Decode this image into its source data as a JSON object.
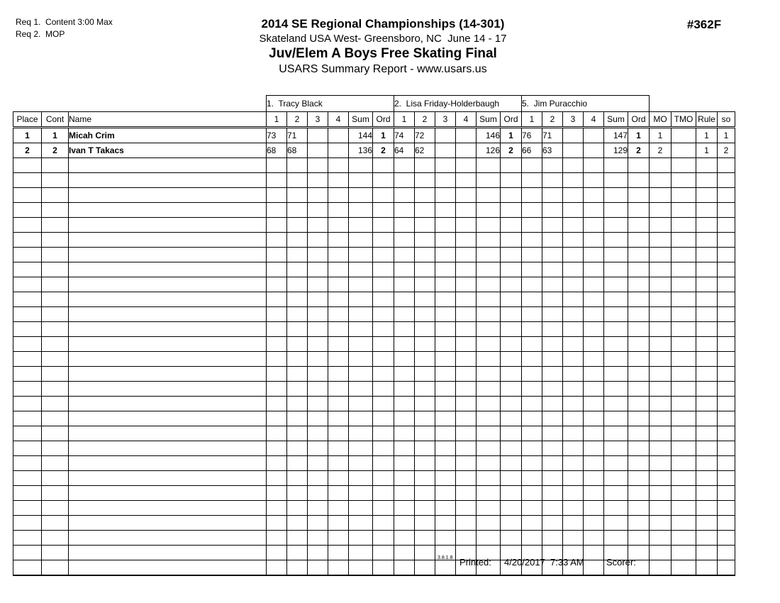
{
  "requirements": {
    "line1": "Req 1.  Content 3:00 Max",
    "line2": "Req 2.  MOP"
  },
  "header": {
    "title": "2014 SE Regional Championships (14-301)",
    "venue_line": "Skateland USA West- Greensboro, NC  June 14 - 17",
    "event_title": "Juv/Elem A Boys Free Skating Final",
    "report_line": "USARS Summary Report - www.usars.us",
    "doc_number": "#362F"
  },
  "table": {
    "left_columns": [
      "Place",
      "Cont",
      "Name"
    ],
    "judge_subcolumns": [
      "1",
      "2",
      "3",
      "4",
      "Sum",
      "Ord"
    ],
    "right_columns": [
      "MO",
      "TMO",
      "Rule",
      "so"
    ],
    "judges": [
      "1.  Tracy Black",
      "2.  Lisa Friday-Holderbaugh",
      "5.  Jim Puracchio"
    ],
    "rows": [
      {
        "place": "1",
        "cont": "1",
        "name": "Micah Crim",
        "judge_scores": [
          {
            "marks": [
              "73",
              "71",
              "",
              ""
            ],
            "sum": "144",
            "ord": "1"
          },
          {
            "marks": [
              "74",
              "72",
              "",
              ""
            ],
            "sum": "146",
            "ord": "1"
          },
          {
            "marks": [
              "76",
              "71",
              "",
              ""
            ],
            "sum": "147",
            "ord": "1"
          }
        ],
        "mo": "1",
        "tmo": "",
        "rule": "1",
        "so": "1"
      },
      {
        "place": "2",
        "cont": "2",
        "name": "Ivan T Takacs",
        "judge_scores": [
          {
            "marks": [
              "68",
              "68",
              "",
              ""
            ],
            "sum": "136",
            "ord": "2"
          },
          {
            "marks": [
              "64",
              "62",
              "",
              ""
            ],
            "sum": "126",
            "ord": "2"
          },
          {
            "marks": [
              "66",
              "63",
              "",
              ""
            ],
            "sum": "129",
            "ord": "2"
          }
        ],
        "mo": "2",
        "tmo": "",
        "rule": "1",
        "so": "2"
      }
    ],
    "empty_row_count": 28
  },
  "footer": {
    "version": "3.8.1.8",
    "printed_label": "Printed:",
    "printed_value": "4/20/2017  7:33 AM",
    "scorer_label": "Scorer:"
  },
  "colors": {
    "ink": "#000000",
    "paper": "#ffffff"
  }
}
